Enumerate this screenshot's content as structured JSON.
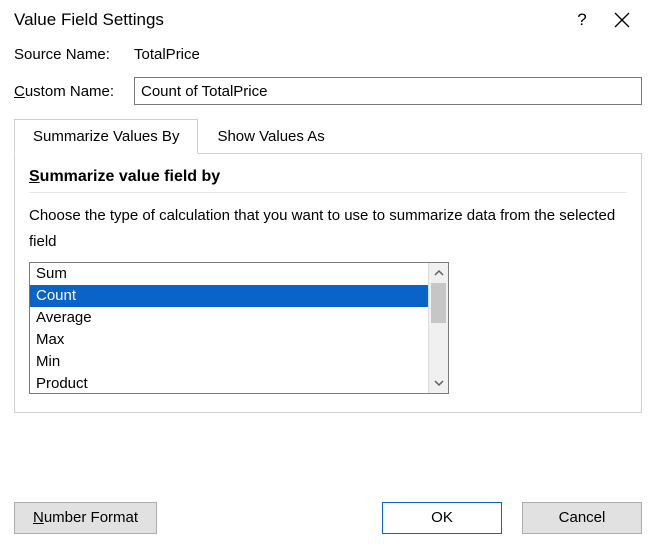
{
  "dialog": {
    "title": "Value Field Settings",
    "source_name_label": "Source Name:",
    "source_name_value": "TotalPrice",
    "custom_name_label_pre": "C",
    "custom_name_label_post": "ustom Name:",
    "custom_name_value": "Count of TotalPrice"
  },
  "tabs": {
    "summarize": "Summarize Values By",
    "show_as": "Show Values As"
  },
  "panel": {
    "heading_pre": "S",
    "heading_post": "ummarize value field by",
    "description": "Choose the type of calculation that you want to use to summarize data from the selected field",
    "options": [
      "Sum",
      "Count",
      "Average",
      "Max",
      "Min",
      "Product"
    ],
    "selected_index": 1
  },
  "buttons": {
    "number_format_pre": "N",
    "number_format_post": "umber Format",
    "ok": "OK",
    "cancel": "Cancel"
  },
  "colors": {
    "selection": "#0a63c6",
    "border": "#7a7a7a",
    "tab_border": "#cfcfcf",
    "btn_bg": "#e1e1e1",
    "btn_border": "#adadad"
  }
}
